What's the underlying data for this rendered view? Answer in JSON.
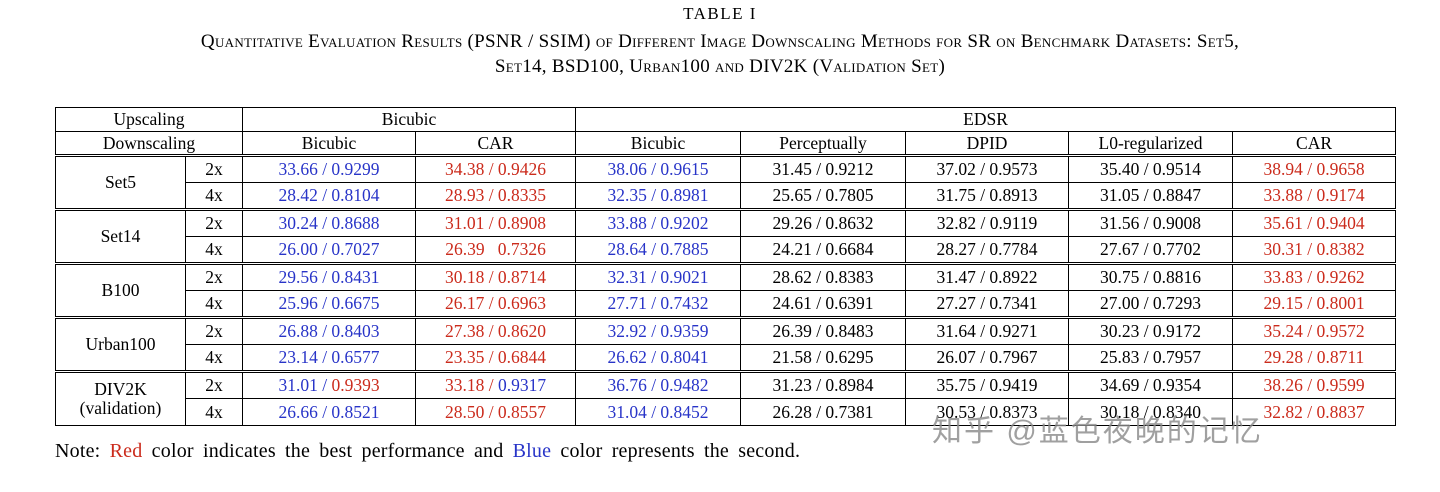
{
  "title": "TABLE I",
  "caption": {
    "line1": "Quantitative Evaluation Results (PSNR / SSIM) of Different Image Downscaling Methods for SR on Benchmark Datasets: Set5,",
    "line2": "Set14, BSD100, Urban100 and DIV2K (Validation Set)"
  },
  "colors": {
    "red": "#cb2b1c",
    "blue": "#2834c8",
    "black": "#000000"
  },
  "table": {
    "header": {
      "upscaling_label": "Upscaling",
      "downscaling_label": "Downscaling",
      "groups": [
        {
          "label": "Bicubic"
        },
        {
          "label": "EDSR"
        }
      ],
      "methods": [
        "Bicubic",
        "CAR",
        "Bicubic",
        "Perceptually",
        "DPID",
        "L0-regularized",
        "CAR"
      ]
    },
    "row_groups": [
      {
        "dataset": [
          "Set5"
        ],
        "rows": [
          {
            "scale": "2x",
            "cells": [
              [
                {
                  "t": "33.66 / 0.9299",
                  "c": "blue"
                }
              ],
              [
                {
                  "t": "34.38 / 0.9426",
                  "c": "red"
                }
              ],
              [
                {
                  "t": "38.06 / 0.9615",
                  "c": "blue"
                }
              ],
              [
                {
                  "t": "31.45 / 0.9212",
                  "c": "black"
                }
              ],
              [
                {
                  "t": "37.02 / 0.9573",
                  "c": "black"
                }
              ],
              [
                {
                  "t": "35.40 / 0.9514",
                  "c": "black"
                }
              ],
              [
                {
                  "t": "38.94 / 0.9658",
                  "c": "red"
                }
              ]
            ]
          },
          {
            "scale": "4x",
            "cells": [
              [
                {
                  "t": "28.42 / 0.8104",
                  "c": "blue"
                }
              ],
              [
                {
                  "t": "28.93 / 0.8335",
                  "c": "red"
                }
              ],
              [
                {
                  "t": "32.35 / 0.8981",
                  "c": "blue"
                }
              ],
              [
                {
                  "t": "25.65 / 0.7805",
                  "c": "black"
                }
              ],
              [
                {
                  "t": "31.75 / 0.8913",
                  "c": "black"
                }
              ],
              [
                {
                  "t": "31.05 / 0.8847",
                  "c": "black"
                }
              ],
              [
                {
                  "t": "33.88 / 0.9174",
                  "c": "red"
                }
              ]
            ]
          }
        ]
      },
      {
        "dataset": [
          "Set14"
        ],
        "rows": [
          {
            "scale": "2x",
            "cells": [
              [
                {
                  "t": "30.24 / 0.8688",
                  "c": "blue"
                }
              ],
              [
                {
                  "t": "31.01 / 0.8908",
                  "c": "red"
                }
              ],
              [
                {
                  "t": "33.88 / 0.9202",
                  "c": "blue"
                }
              ],
              [
                {
                  "t": "29.26 / 0.8632",
                  "c": "black"
                }
              ],
              [
                {
                  "t": "32.82 / 0.9119",
                  "c": "black"
                }
              ],
              [
                {
                  "t": "31.56 / 0.9008",
                  "c": "black"
                }
              ],
              [
                {
                  "t": "35.61 / 0.9404",
                  "c": "red"
                }
              ]
            ]
          },
          {
            "scale": "4x",
            "cells": [
              [
                {
                  "t": "26.00 / 0.7027",
                  "c": "blue"
                }
              ],
              [
                {
                  "t": "26.39   0.7326",
                  "c": "red"
                }
              ],
              [
                {
                  "t": "28.64 / 0.7885",
                  "c": "blue"
                }
              ],
              [
                {
                  "t": "24.21 / 0.6684",
                  "c": "black"
                }
              ],
              [
                {
                  "t": "28.27 / 0.7784",
                  "c": "black"
                }
              ],
              [
                {
                  "t": "27.67 / 0.7702",
                  "c": "black"
                }
              ],
              [
                {
                  "t": "30.31 / 0.8382",
                  "c": "red"
                }
              ]
            ]
          }
        ]
      },
      {
        "dataset": [
          "B100"
        ],
        "rows": [
          {
            "scale": "2x",
            "cells": [
              [
                {
                  "t": "29.56 / 0.8431",
                  "c": "blue"
                }
              ],
              [
                {
                  "t": "30.18 / 0.8714",
                  "c": "red"
                }
              ],
              [
                {
                  "t": "32.31 / 0.9021",
                  "c": "blue"
                }
              ],
              [
                {
                  "t": "28.62 / 0.8383",
                  "c": "black"
                }
              ],
              [
                {
                  "t": "31.47 / 0.8922",
                  "c": "black"
                }
              ],
              [
                {
                  "t": "30.75 / 0.8816",
                  "c": "black"
                }
              ],
              [
                {
                  "t": "33.83 / 0.9262",
                  "c": "red"
                }
              ]
            ]
          },
          {
            "scale": "4x",
            "cells": [
              [
                {
                  "t": "25.96 / 0.6675",
                  "c": "blue"
                }
              ],
              [
                {
                  "t": "26.17 / 0.6963",
                  "c": "red"
                }
              ],
              [
                {
                  "t": "27.71 / 0.7432",
                  "c": "blue"
                }
              ],
              [
                {
                  "t": "24.61 / 0.6391",
                  "c": "black"
                }
              ],
              [
                {
                  "t": "27.27 / 0.7341",
                  "c": "black"
                }
              ],
              [
                {
                  "t": "27.00 / 0.7293",
                  "c": "black"
                }
              ],
              [
                {
                  "t": "29.15 / 0.8001",
                  "c": "red"
                }
              ]
            ]
          }
        ]
      },
      {
        "dataset": [
          "Urban100"
        ],
        "rows": [
          {
            "scale": "2x",
            "cells": [
              [
                {
                  "t": "26.88 / 0.8403",
                  "c": "blue"
                }
              ],
              [
                {
                  "t": "27.38 / 0.8620",
                  "c": "red"
                }
              ],
              [
                {
                  "t": "32.92 / 0.9359",
                  "c": "blue"
                }
              ],
              [
                {
                  "t": "26.39 / 0.8483",
                  "c": "black"
                }
              ],
              [
                {
                  "t": "31.64 / 0.9271",
                  "c": "black"
                }
              ],
              [
                {
                  "t": "30.23 / 0.9172",
                  "c": "black"
                }
              ],
              [
                {
                  "t": "35.24 / 0.9572",
                  "c": "red"
                }
              ]
            ]
          },
          {
            "scale": "4x",
            "cells": [
              [
                {
                  "t": "23.14 / 0.6577",
                  "c": "blue"
                }
              ],
              [
                {
                  "t": "23.35 / 0.6844",
                  "c": "red"
                }
              ],
              [
                {
                  "t": "26.62 / 0.8041",
                  "c": "blue"
                }
              ],
              [
                {
                  "t": "21.58 / 0.6295",
                  "c": "black"
                }
              ],
              [
                {
                  "t": "26.07 / 0.7967",
                  "c": "black"
                }
              ],
              [
                {
                  "t": "25.83 / 0.7957",
                  "c": "black"
                }
              ],
              [
                {
                  "t": "29.28 / 0.8711",
                  "c": "red"
                }
              ]
            ]
          }
        ]
      },
      {
        "dataset": [
          "DIV2K",
          "(validation)"
        ],
        "rows": [
          {
            "scale": "2x",
            "cells": [
              [
                {
                  "t": "31.01 / ",
                  "c": "blue"
                },
                {
                  "t": "0.9393",
                  "c": "red"
                }
              ],
              [
                {
                  "t": "33.18 / ",
                  "c": "red"
                },
                {
                  "t": "0.9317",
                  "c": "blue"
                }
              ],
              [
                {
                  "t": "36.76 / 0.9482",
                  "c": "blue"
                }
              ],
              [
                {
                  "t": "31.23 / 0.8984",
                  "c": "black"
                }
              ],
              [
                {
                  "t": "35.75 / 0.9419",
                  "c": "black"
                }
              ],
              [
                {
                  "t": "34.69 / 0.9354",
                  "c": "black"
                }
              ],
              [
                {
                  "t": "38.26 / 0.9599",
                  "c": "red"
                }
              ]
            ]
          },
          {
            "scale": "4x",
            "cells": [
              [
                {
                  "t": "26.66 / 0.8521",
                  "c": "blue"
                }
              ],
              [
                {
                  "t": "28.50 / 0.8557",
                  "c": "red"
                }
              ],
              [
                {
                  "t": "31.04 / 0.8452",
                  "c": "blue"
                }
              ],
              [
                {
                  "t": "26.28 / 0.7381",
                  "c": "black"
                }
              ],
              [
                {
                  "t": "30.53 / 0.8373",
                  "c": "black"
                }
              ],
              [
                {
                  "t": "30.18 / 0.8340",
                  "c": "black"
                }
              ],
              [
                {
                  "t": "32.82 / 0.8837",
                  "c": "red"
                }
              ]
            ]
          }
        ]
      }
    ]
  },
  "note": {
    "segments": [
      {
        "text": "Note: ",
        "color": "black"
      },
      {
        "text": "Red",
        "color": "red"
      },
      {
        "text": " color indicates the best performance and ",
        "color": "black"
      },
      {
        "text": "Blue",
        "color": "blue"
      },
      {
        "text": " color represents the second.",
        "color": "black"
      }
    ]
  },
  "watermark": {
    "text": "知乎 @蓝色夜晚的记忆"
  }
}
